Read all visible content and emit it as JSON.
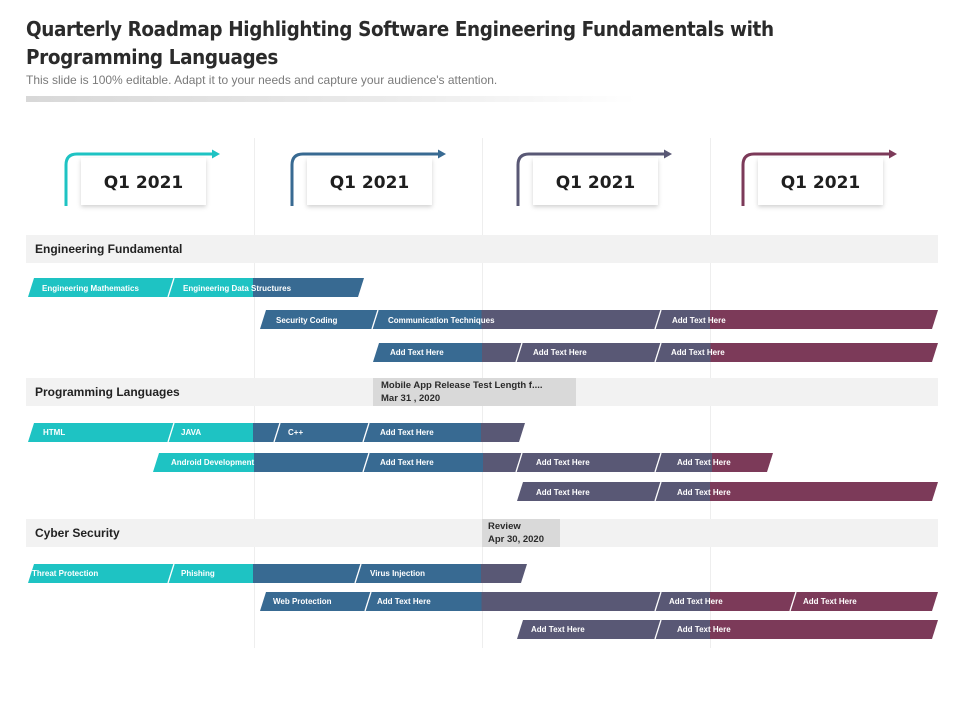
{
  "title": "Quarterly Roadmap Highlighting Software Engineering Fundamentals with Programming Languages",
  "subtitle": "This slide is 100% editable. Adapt it to your needs and capture your audience's attention.",
  "colors": {
    "teal": "#1ec3c3",
    "blue": "#386a92",
    "slate": "#595875",
    "plum": "#7c3a59",
    "section_bg": "#f2f2f2",
    "note_bg": "#d9d9d9"
  },
  "quarters": [
    {
      "label": "Q1 2021",
      "color": "#1ec3c3"
    },
    {
      "label": "Q1 2021",
      "color": "#386a92"
    },
    {
      "label": "Q1 2021",
      "color": "#595875"
    },
    {
      "label": "Q1 2021",
      "color": "#7c3a59"
    }
  ],
  "sections": [
    {
      "label": "Engineering  Fundamental",
      "rows": [
        [
          {
            "label": "Engineering Mathematics"
          },
          {
            "label": "Engineering Data Structures"
          }
        ],
        [
          {
            "label": "Security Coding"
          },
          {
            "label": "Communication Techniques"
          },
          {
            "label": "Add Text Here"
          }
        ],
        [
          {
            "label": "Add Text Here"
          },
          {
            "label": "Add Text Here"
          },
          {
            "label": "Add Text Here"
          }
        ]
      ]
    },
    {
      "label": "Programming Languages",
      "rows": [
        [
          {
            "label": "HTML"
          },
          {
            "label": "JAVA"
          },
          {
            "label": "C++"
          },
          {
            "label": "Add Text Here"
          }
        ],
        [
          {
            "label": "Android Development"
          },
          {
            "label": "Add Text Here"
          },
          {
            "label": "Add Text Here"
          },
          {
            "label": "Add Text Here"
          }
        ],
        [
          {
            "label": "Add Text Here"
          },
          {
            "label": "Add Text Here"
          }
        ]
      ]
    },
    {
      "label": "Cyber Security",
      "rows": [
        [
          {
            "label": "Threat Protection"
          },
          {
            "label": "Phishing"
          },
          {
            "label": "Virus Injection"
          }
        ],
        [
          {
            "label": "Web Protection"
          },
          {
            "label": "Add Text Here"
          },
          {
            "label": "Add Text Here"
          },
          {
            "label": "Add Text Here"
          }
        ],
        [
          {
            "label": "Add Text Here"
          },
          {
            "label": "Add Text Here"
          }
        ]
      ]
    }
  ],
  "milestones": [
    {
      "line1": "Mobile App Release Test Length f....",
      "line2": "Mar 31 , 2020"
    },
    {
      "line1": "Review",
      "line2": "Apr 30, 2020"
    }
  ]
}
